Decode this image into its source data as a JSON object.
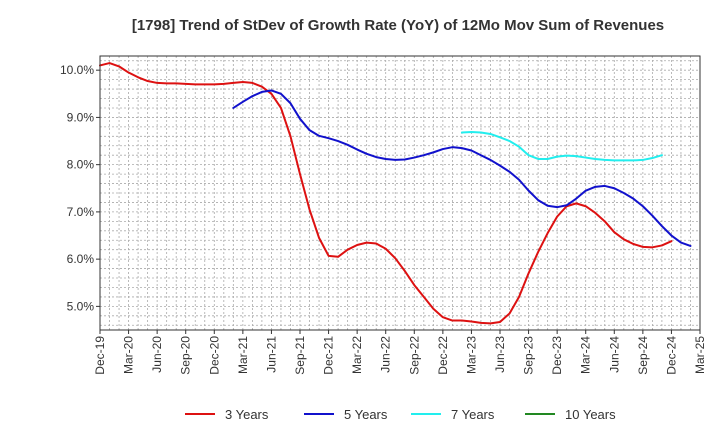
{
  "chart_data": {
    "type": "line",
    "title": "[1798]  Trend of StDev of Growth Rate (YoY) of 12Mo Mov Sum of Revenues",
    "xlabel": "",
    "ylabel": "",
    "ylim": [
      4.5,
      10.3
    ],
    "yticks": [
      5.0,
      6.0,
      7.0,
      8.0,
      9.0,
      10.0
    ],
    "ytick_labels": [
      "5.0%",
      "6.0%",
      "7.0%",
      "8.0%",
      "9.0%",
      "10.0%"
    ],
    "xtick_labels": [
      "Dec-19",
      "Mar-20",
      "Jun-20",
      "Sep-20",
      "Dec-20",
      "Mar-21",
      "Jun-21",
      "Sep-21",
      "Dec-21",
      "Mar-22",
      "Jun-22",
      "Sep-22",
      "Dec-22",
      "Mar-23",
      "Jun-23",
      "Sep-23",
      "Dec-23",
      "Mar-24",
      "Jun-24",
      "Sep-24",
      "Dec-24",
      "Mar-25"
    ],
    "x_range_months": [
      0,
      63
    ],
    "grid": true,
    "legend_position": "bottom",
    "series": [
      {
        "name": "3 Years",
        "color": "#dd1111",
        "start_month": 0,
        "values": [
          10.1,
          10.15,
          10.08,
          9.95,
          9.85,
          9.77,
          9.73,
          9.72,
          9.72,
          9.71,
          9.7,
          9.7,
          9.7,
          9.71,
          9.73,
          9.75,
          9.73,
          9.65,
          9.5,
          9.2,
          8.6,
          7.8,
          7.05,
          6.45,
          6.07,
          6.05,
          6.2,
          6.3,
          6.35,
          6.33,
          6.22,
          6.02,
          5.75,
          5.45,
          5.2,
          4.95,
          4.77,
          4.7,
          4.7,
          4.68,
          4.65,
          4.64,
          4.67,
          4.85,
          5.2,
          5.7,
          6.15,
          6.55,
          6.9,
          7.12,
          7.18,
          7.12,
          6.98,
          6.8,
          6.57,
          6.42,
          6.32,
          6.26,
          6.25,
          6.29,
          6.38
        ]
      },
      {
        "name": "5 Years",
        "color": "#1111cc",
        "start_month": 14,
        "values": [
          9.2,
          9.33,
          9.45,
          9.54,
          9.57,
          9.5,
          9.3,
          8.97,
          8.73,
          8.61,
          8.56,
          8.5,
          8.42,
          8.32,
          8.23,
          8.16,
          8.12,
          8.1,
          8.11,
          8.15,
          8.2,
          8.26,
          8.33,
          8.37,
          8.35,
          8.3,
          8.2,
          8.1,
          7.98,
          7.85,
          7.68,
          7.45,
          7.25,
          7.13,
          7.1,
          7.14,
          7.28,
          7.45,
          7.53,
          7.55,
          7.5,
          7.4,
          7.28,
          7.12,
          6.92,
          6.7,
          6.5,
          6.35,
          6.28
        ]
      },
      {
        "name": "7 Years",
        "color": "#22eeee",
        "start_month": 38,
        "values": [
          8.68,
          8.69,
          8.68,
          8.65,
          8.58,
          8.5,
          8.38,
          8.2,
          8.12,
          8.12,
          8.17,
          8.19,
          8.18,
          8.15,
          8.12,
          8.1,
          8.09,
          8.09,
          8.09,
          8.1,
          8.14,
          8.2
        ]
      },
      {
        "name": "10 Years",
        "color": "#228822",
        "start_month": 0,
        "values": []
      }
    ]
  }
}
